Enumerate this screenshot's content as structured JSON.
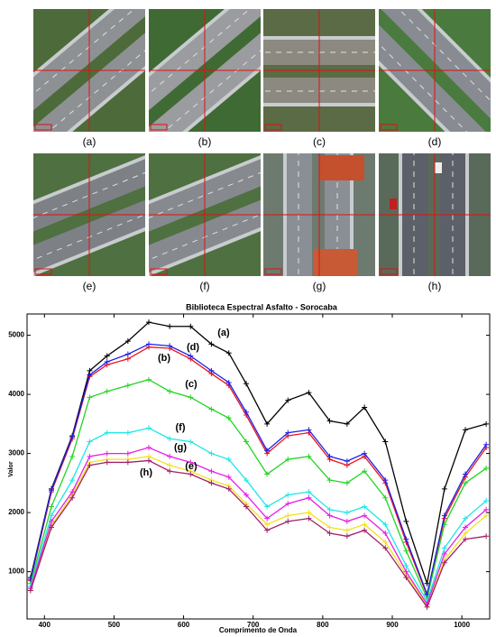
{
  "figure": {
    "panels": [
      "(a)",
      "(b)",
      "(c)",
      "(d)",
      "(e)",
      "(f)",
      "(g)",
      "(h)"
    ]
  },
  "chart_data": {
    "type": "line",
    "title": "Biblioteca Espectral Asfalto - Sorocaba",
    "x_label": "Comprimento de Onda",
    "y_label": "Valor",
    "x": [
      380,
      410,
      440,
      465,
      490,
      520,
      550,
      580,
      610,
      640,
      665,
      690,
      720,
      750,
      780,
      810,
      835,
      860,
      890,
      920,
      950,
      975,
      1005,
      1035
    ],
    "series": [
      {
        "name": "(a)",
        "color": "#000000",
        "values": [
          900,
          2400,
          3300,
          4400,
          4650,
          4900,
          5220,
          5150,
          5150,
          4850,
          4700,
          4180,
          3500,
          3900,
          4030,
          3550,
          3500,
          3780,
          3200,
          1850,
          800,
          2400,
          3400,
          3500
        ]
      },
      {
        "name": "(b)",
        "color": "#e8141e",
        "values": [
          850,
          2350,
          3250,
          4300,
          4500,
          4600,
          4800,
          4780,
          4600,
          4350,
          4150,
          3650,
          3000,
          3300,
          3350,
          2900,
          2800,
          2950,
          2500,
          1500,
          600,
          1900,
          2600,
          3100
        ]
      },
      {
        "name": "(c)",
        "color": "#22d422",
        "values": [
          800,
          2100,
          2950,
          3950,
          4050,
          4150,
          4250,
          4050,
          3950,
          3750,
          3600,
          3200,
          2650,
          2900,
          2950,
          2550,
          2500,
          2700,
          2250,
          1350,
          550,
          1800,
          2500,
          2750
        ]
      },
      {
        "name": "(d)",
        "color": "#1e1ee6",
        "values": [
          870,
          2380,
          3280,
          4330,
          4550,
          4680,
          4850,
          4820,
          4650,
          4400,
          4200,
          3700,
          3050,
          3350,
          3400,
          2950,
          2870,
          3000,
          2550,
          1550,
          620,
          1950,
          2650,
          3150
        ]
      },
      {
        "name": "(e)",
        "color": "#f2e21a",
        "values": [
          700,
          1780,
          2300,
          2850,
          2900,
          2900,
          2950,
          2800,
          2700,
          2550,
          2450,
          2150,
          1800,
          1950,
          2000,
          1750,
          1700,
          1800,
          1500,
          950,
          420,
          1200,
          1650,
          1950
        ]
      },
      {
        "name": "(f)",
        "color": "#1ee6e6",
        "values": [
          750,
          1950,
          2550,
          3200,
          3350,
          3350,
          3430,
          3250,
          3200,
          3000,
          2900,
          2550,
          2100,
          2300,
          2350,
          2050,
          2000,
          2100,
          1800,
          1100,
          500,
          1400,
          1900,
          2200
        ]
      },
      {
        "name": "(g)",
        "color": "#e61ee6",
        "values": [
          720,
          1850,
          2350,
          2950,
          3000,
          3000,
          3100,
          2950,
          2850,
          2700,
          2600,
          2300,
          1900,
          2150,
          2250,
          1950,
          1850,
          1950,
          1650,
          1000,
          450,
          1300,
          1750,
          2050
        ]
      },
      {
        "name": "(h)",
        "color": "#a0206a",
        "values": [
          680,
          1750,
          2250,
          2800,
          2850,
          2850,
          2880,
          2700,
          2650,
          2500,
          2400,
          2100,
          1700,
          1850,
          1900,
          1650,
          1600,
          1700,
          1400,
          900,
          400,
          1150,
          1550,
          1600
        ]
      }
    ],
    "xlim": [
      375,
      1040
    ],
    "ylim": [
      200,
      5360
    ],
    "xticks": [
      400,
      500,
      600,
      700,
      800,
      900,
      1000
    ],
    "yticks": [
      1000,
      2000,
      3000,
      4000,
      5000
    ]
  }
}
